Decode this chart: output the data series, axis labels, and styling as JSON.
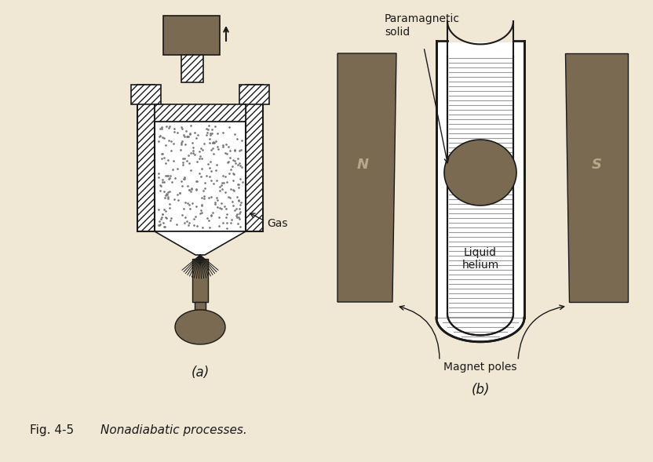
{
  "background_color": "#f0e8d5",
  "fig_label": "Fig. 4-5",
  "fig_caption": "Nonadiabatic processes.",
  "label_a": "(a)",
  "label_b": "(b)",
  "text_gas": "Gas",
  "text_paramagnetic": "Paramagnetic\nsolid",
  "text_liquid_helium": "Liquid\nhelium",
  "text_magnet_poles": "Magnet poles",
  "text_N": "N",
  "text_S": "S",
  "dark_brown": "#7a6a52",
  "line_color": "#1a1a1a",
  "gray_dot": "#888888",
  "hatch_line": "#aaaaaa"
}
